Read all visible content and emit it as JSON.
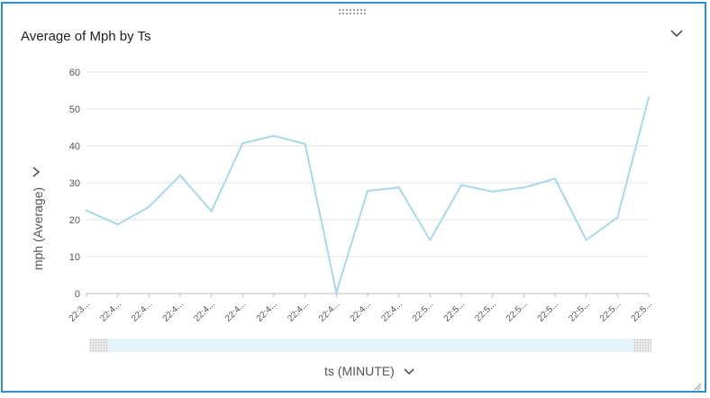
{
  "panel": {
    "title": "Average of Mph by Ts",
    "menu_icon": "chevron-down-icon",
    "drag_icon": "drag-handle-icon",
    "resize_icon": "resize-grip-icon",
    "border_color": "#2e8fd0"
  },
  "chart_data": {
    "type": "line",
    "title": "Average of Mph by Ts",
    "xlabel": "ts (MINUTE)",
    "ylabel": "mph (Average)",
    "ylim": [
      0,
      60
    ],
    "yticks": [
      0,
      10,
      20,
      30,
      40,
      50,
      60
    ],
    "grid": true,
    "line_color": "#a8d8ea",
    "categories": [
      "22:3...",
      "22:4...",
      "22:4...",
      "22:4...",
      "22:4...",
      "22:4...",
      "22:4...",
      "22:4...",
      "22:4...",
      "22:4...",
      "22:4...",
      "22:5...",
      "22:5...",
      "22:5...",
      "22:5...",
      "22:5...",
      "22:5...",
      "22:5...",
      "22:5..."
    ],
    "series": [
      {
        "values": [
          22.5,
          18.7,
          23.5,
          32.0,
          22.3,
          40.7,
          42.7,
          40.5,
          0.3,
          27.8,
          28.7,
          14.5,
          29.4,
          27.6,
          28.7,
          31.1,
          14.5,
          20.6,
          53.1
        ]
      }
    ]
  }
}
